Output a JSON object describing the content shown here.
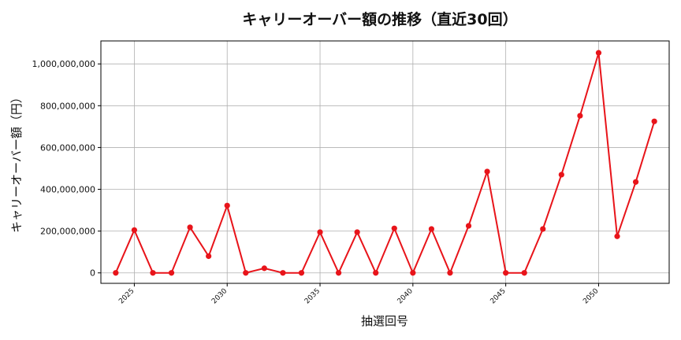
{
  "chart_data": {
    "type": "line",
    "title": "キャリーオーバー額の推移（直近30回）",
    "xlabel": "抽選回号",
    "ylabel": "キャリーオーバー額（円）",
    "x": [
      2024,
      2025,
      2026,
      2027,
      2028,
      2029,
      2030,
      2031,
      2032,
      2033,
      2034,
      2035,
      2036,
      2037,
      2038,
      2039,
      2040,
      2041,
      2042,
      2043,
      2044,
      2045,
      2046,
      2047,
      2048,
      2049,
      2050,
      2051,
      2052,
      2053
    ],
    "series": [
      {
        "values": [
          0,
          205000000,
          0,
          0,
          218000000,
          80000000,
          322000000,
          0,
          22000000,
          0,
          0,
          195000000,
          0,
          195000000,
          0,
          213000000,
          0,
          210000000,
          0,
          225000000,
          485000000,
          0,
          0,
          210000000,
          470000000,
          752000000,
          1053000000,
          175000000,
          435000000,
          725000000
        ]
      }
    ],
    "xlim": [
      2023.2,
      2053.8
    ],
    "ylim": [
      -50000000,
      1110000000
    ],
    "xticks": [
      2025,
      2030,
      2035,
      2040,
      2045,
      2050
    ],
    "xtick_labels": [
      "2025",
      "2030",
      "2035",
      "2040",
      "2045",
      "2050"
    ],
    "yticks": [
      0,
      200000000,
      400000000,
      600000000,
      800000000,
      1000000000
    ],
    "ytick_labels": [
      "0",
      "200,000,000",
      "400,000,000",
      "600,000,000",
      "800,000,000",
      "1,000,000,000"
    ],
    "grid": true,
    "color": "#e8141a"
  }
}
